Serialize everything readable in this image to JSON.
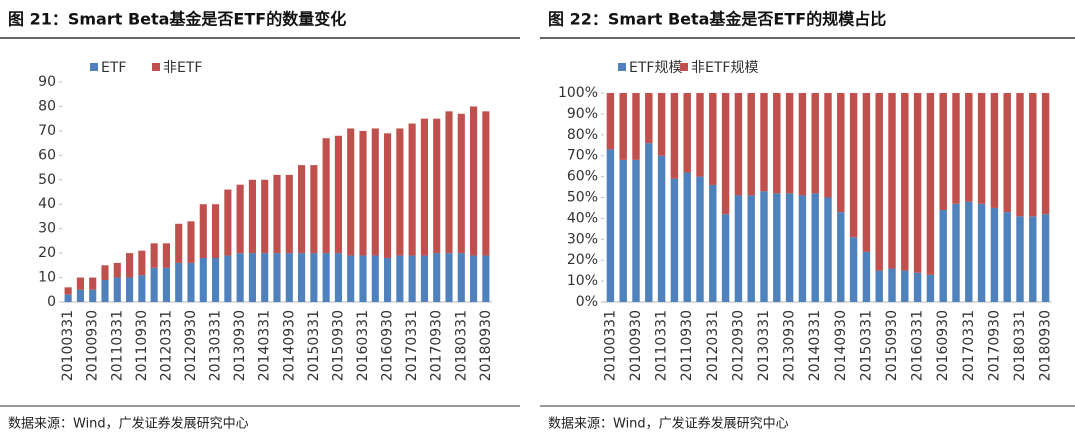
{
  "chart_data": [
    {
      "type": "stacked_bar",
      "title": "图 21：Smart Beta基金是否ETF的数量变化",
      "source": "数据来源：Wind，广发证券发展研究中心",
      "categories": [
        "20100331",
        null,
        "20100930",
        null,
        "20110331",
        null,
        "20110930",
        null,
        "20120331",
        null,
        "20120930",
        null,
        "20130331",
        null,
        "20130930",
        null,
        "20140331",
        null,
        "20140930",
        null,
        "20150331",
        null,
        "20150930",
        null,
        "20160331",
        null,
        "20160930",
        null,
        "20170331",
        null,
        "20170930",
        null,
        "20180331",
        null,
        "20180930"
      ],
      "series": [
        {
          "name": "ETF",
          "color": "#4f81bd",
          "values": [
            3,
            5,
            5,
            9,
            10,
            10,
            11,
            14,
            14,
            16,
            16,
            18,
            18,
            19,
            20,
            20,
            20,
            20,
            20,
            20,
            20,
            20,
            20,
            19,
            19,
            19,
            18,
            19,
            19,
            19,
            20,
            20,
            20,
            19,
            19
          ]
        },
        {
          "name": "非ETF",
          "color": "#c0504d",
          "values": [
            3,
            5,
            5,
            6,
            6,
            10,
            10,
            10,
            10,
            16,
            17,
            22,
            22,
            27,
            28,
            30,
            30,
            32,
            32,
            36,
            36,
            47,
            48,
            52,
            51,
            52,
            51,
            52,
            54,
            56,
            55,
            58,
            57,
            61,
            59
          ]
        }
      ],
      "ylim": [
        0,
        90
      ],
      "yticks": [
        0,
        10,
        20,
        30,
        40,
        50,
        60,
        70,
        80,
        90
      ]
    },
    {
      "type": "stacked_bar",
      "title": "图 22：Smart Beta基金是否ETF的规模占比",
      "source": "数据来源：Wind，广发证券发展研究中心",
      "categories": [
        "20100331",
        null,
        "20100930",
        null,
        "20110331",
        null,
        "20110930",
        null,
        "20120331",
        null,
        "20120930",
        null,
        "20130331",
        null,
        "20130930",
        null,
        "20140331",
        null,
        "20140930",
        null,
        "20150331",
        null,
        "20150930",
        null,
        "20160331",
        null,
        "20160930",
        null,
        "20170331",
        null,
        "20170930",
        null,
        "20180331",
        null,
        "20180930"
      ],
      "series": [
        {
          "name": "ETF规模",
          "color": "#4f81bd",
          "values": [
            73,
            68,
            68,
            76,
            70,
            59,
            62,
            60,
            56,
            42,
            51,
            51,
            53,
            52,
            52,
            51,
            52,
            50,
            43,
            31,
            24,
            15,
            16,
            15,
            14,
            13,
            44,
            47,
            48,
            47,
            45,
            43,
            41,
            41,
            42
          ]
        },
        {
          "name": "非ETF规模",
          "color": "#c0504d",
          "values": [
            27,
            32,
            32,
            24,
            30,
            41,
            38,
            40,
            44,
            58,
            49,
            49,
            47,
            48,
            48,
            49,
            48,
            50,
            57,
            69,
            76,
            85,
            84,
            85,
            86,
            87,
            56,
            53,
            52,
            53,
            55,
            57,
            59,
            59,
            58
          ]
        }
      ],
      "ylim": [
        0,
        100
      ],
      "yticks": [
        {
          "value": 0,
          "label": "0%"
        },
        {
          "value": 10,
          "label": "10%"
        },
        {
          "value": 20,
          "label": "20%"
        },
        {
          "value": 30,
          "label": "30%"
        },
        {
          "value": 40,
          "label": "40%"
        },
        {
          "value": 50,
          "label": "50%"
        },
        {
          "value": 60,
          "label": "60%"
        },
        {
          "value": 70,
          "label": "70%"
        },
        {
          "value": 80,
          "label": "80%"
        },
        {
          "value": 90,
          "label": "90%"
        },
        {
          "value": 100,
          "label": "100%"
        }
      ]
    }
  ]
}
